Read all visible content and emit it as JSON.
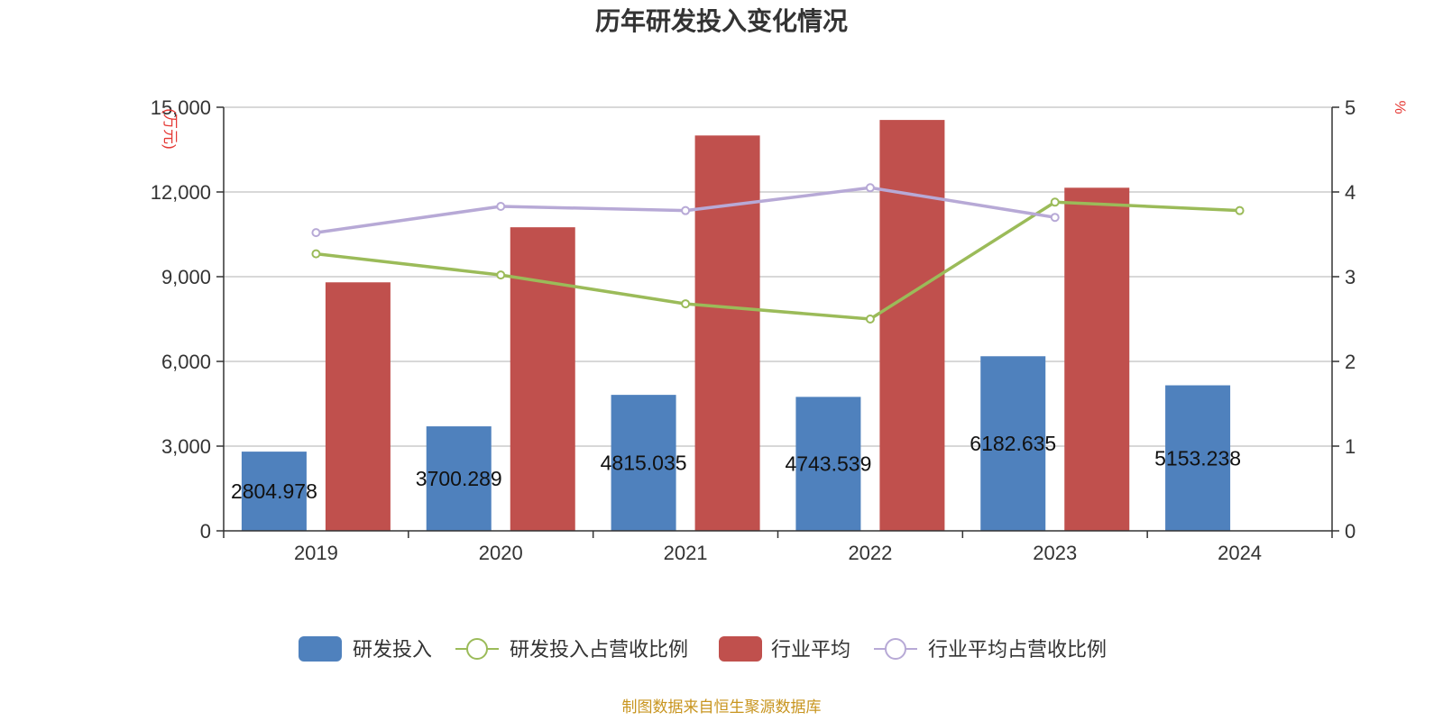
{
  "chart_data": {
    "type": "bar",
    "title": "历年研发投入变化情况",
    "left_axis_unit": "万元",
    "right_axis_unit": "%",
    "categories": [
      "2019",
      "2020",
      "2021",
      "2022",
      "2023",
      "2024"
    ],
    "ylim_left": [
      0,
      15000
    ],
    "ylim_right": [
      0,
      5
    ],
    "left_ticks": [
      0,
      3000,
      6000,
      9000,
      12000,
      15000
    ],
    "left_tick_labels": [
      "0",
      "3,000",
      "6,000",
      "9,000",
      "12,000",
      "15,000"
    ],
    "right_ticks": [
      0,
      1,
      2,
      3,
      4,
      5
    ],
    "right_tick_labels": [
      "0",
      "1",
      "2",
      "3",
      "4",
      "5"
    ],
    "grid": true,
    "legend_position": "bottom",
    "series": [
      {
        "name": "研发投入",
        "kind": "bar",
        "axis": "left",
        "color": "#4f81bd",
        "values": [
          2804.978,
          3700.289,
          4815.035,
          4743.539,
          6182.635,
          5153.238
        ],
        "labels": [
          "2804.978",
          "3700.289",
          "4815.035",
          "4743.539",
          "6182.635",
          "5153.238"
        ]
      },
      {
        "name": "研发投入占营收比例",
        "kind": "line",
        "axis": "right",
        "color": "#9bbb59",
        "values": [
          3.27,
          3.02,
          2.68,
          2.5,
          3.88,
          3.78
        ]
      },
      {
        "name": "行业平均",
        "kind": "bar",
        "axis": "left",
        "color": "#c0504d",
        "values": [
          8800,
          10750,
          14000,
          14550,
          12150,
          null
        ]
      },
      {
        "name": "行业平均占营收比例",
        "kind": "line",
        "axis": "right",
        "color": "#b7a9d6",
        "values": [
          3.52,
          3.83,
          3.78,
          4.05,
          3.7,
          null
        ]
      }
    ],
    "source": "制图数据来自恒生聚源数据库"
  }
}
